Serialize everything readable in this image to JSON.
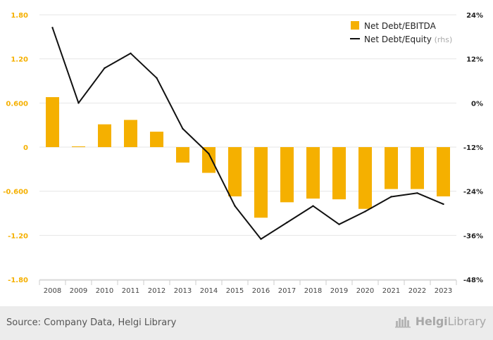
{
  "chart_data": {
    "type": "bar+line",
    "categories": [
      "2008",
      "2009",
      "2010",
      "2011",
      "2012",
      "2013",
      "2014",
      "2015",
      "2016",
      "2017",
      "2018",
      "2019",
      "2020",
      "2021",
      "2022",
      "2023"
    ],
    "series": [
      {
        "name": "Net Debt/EBITDA",
        "type": "bar",
        "axis": "left",
        "color": "#f5b000",
        "values": [
          0.68,
          0.01,
          0.31,
          0.37,
          0.21,
          -0.21,
          -0.35,
          -0.67,
          -0.96,
          -0.75,
          -0.7,
          -0.71,
          -0.84,
          -0.57,
          -0.57,
          -0.67
        ]
      },
      {
        "name": "Net Debt/Equity",
        "axis_note": "(rhs)",
        "type": "line",
        "axis": "right",
        "color": "#111111",
        "values": [
          20.5,
          0.0,
          9.5,
          13.5,
          6.8,
          -7.0,
          -13.8,
          -28.0,
          -37.0,
          -32.5,
          -28.0,
          -33.0,
          -29.5,
          -25.5,
          -24.5,
          -27.5
        ]
      }
    ],
    "y_left": {
      "ticks": [
        "1.80",
        "1.20",
        "0.600",
        "0",
        "-0.600",
        "-1.20",
        "-1.80"
      ],
      "range": [
        -1.8,
        1.8
      ]
    },
    "y_right": {
      "ticks": [
        "24%",
        "12%",
        "0%",
        "-12%",
        "-24%",
        "-36%",
        "-48%"
      ],
      "range": [
        -48,
        24
      ]
    },
    "grid": true,
    "legend": "top-right"
  },
  "footer": {
    "source": "Source: Company Data, Helgi Library",
    "brand_part1": "Helgi",
    "brand_part2": "Library"
  },
  "colors": {
    "left_axis_text": "#f5b000",
    "right_axis_text": "#222222",
    "grid": "#e6e6e6"
  }
}
